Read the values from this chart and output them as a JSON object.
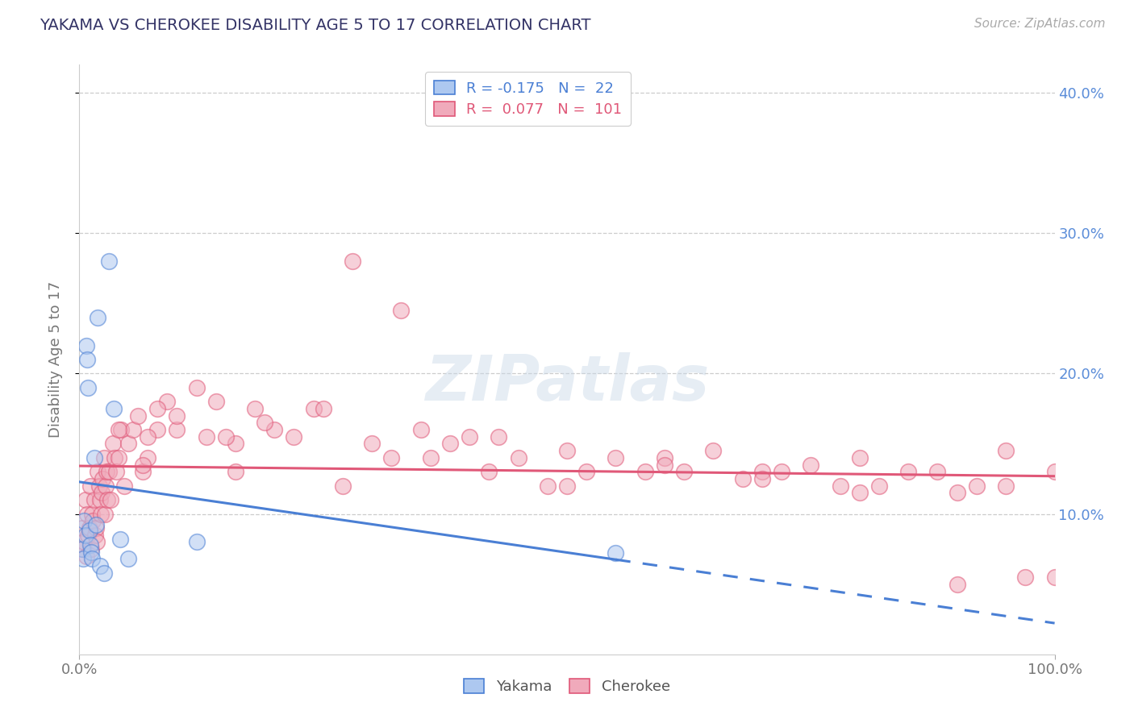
{
  "title": "YAKAMA VS CHEROKEE DISABILITY AGE 5 TO 17 CORRELATION CHART",
  "source": "Source: ZipAtlas.com",
  "ylabel": "Disability Age 5 to 17",
  "xlim": [
    0.0,
    1.0
  ],
  "ylim": [
    0.0,
    0.42
  ],
  "ytick_vals": [
    0.1,
    0.2,
    0.3,
    0.4
  ],
  "ytick_labels": [
    "10.0%",
    "20.0%",
    "30.0%",
    "40.0%"
  ],
  "xtick_vals": [
    0.0,
    1.0
  ],
  "xtick_labels": [
    "0.0%",
    "100.0%"
  ],
  "legend_R_yakama": "-0.175",
  "legend_N_yakama": "22",
  "legend_R_cherokee": "0.077",
  "legend_N_cherokee": "101",
  "yakama_color": "#adc8f0",
  "cherokee_color": "#f0aabb",
  "yakama_line_color": "#4a7fd4",
  "cherokee_line_color": "#e05878",
  "background_color": "#ffffff",
  "yakama_x": [
    0.003,
    0.004,
    0.005,
    0.006,
    0.007,
    0.008,
    0.009,
    0.01,
    0.011,
    0.012,
    0.013,
    0.015,
    0.017,
    0.019,
    0.021,
    0.025,
    0.03,
    0.035,
    0.042,
    0.05,
    0.12,
    0.55
  ],
  "yakama_y": [
    0.075,
    0.068,
    0.095,
    0.085,
    0.22,
    0.21,
    0.19,
    0.088,
    0.078,
    0.073,
    0.068,
    0.14,
    0.092,
    0.24,
    0.063,
    0.058,
    0.28,
    0.175,
    0.082,
    0.068,
    0.08,
    0.072
  ],
  "cherokee_x": [
    0.003,
    0.004,
    0.005,
    0.006,
    0.007,
    0.008,
    0.009,
    0.01,
    0.011,
    0.012,
    0.013,
    0.014,
    0.015,
    0.016,
    0.017,
    0.018,
    0.019,
    0.02,
    0.021,
    0.022,
    0.023,
    0.024,
    0.025,
    0.026,
    0.027,
    0.028,
    0.029,
    0.03,
    0.032,
    0.034,
    0.036,
    0.038,
    0.04,
    0.043,
    0.046,
    0.05,
    0.055,
    0.06,
    0.065,
    0.07,
    0.08,
    0.09,
    0.1,
    0.12,
    0.14,
    0.16,
    0.18,
    0.2,
    0.24,
    0.28,
    0.32,
    0.38,
    0.43,
    0.5,
    0.58,
    0.65,
    0.72,
    0.8,
    0.88,
    0.95,
    1.0,
    0.065,
    0.07,
    0.1,
    0.13,
    0.16,
    0.19,
    0.22,
    0.3,
    0.36,
    0.42,
    0.48,
    0.55,
    0.62,
    0.68,
    0.75,
    0.82,
    0.9,
    0.97,
    0.04,
    0.08,
    0.15,
    0.25,
    0.35,
    0.45,
    0.52,
    0.6,
    0.7,
    0.78,
    0.85,
    0.92,
    0.33,
    0.4,
    0.5,
    0.6,
    0.7,
    0.8,
    0.9,
    0.95,
    1.0,
    0.27
  ],
  "cherokee_y": [
    0.09,
    0.075,
    0.08,
    0.11,
    0.07,
    0.1,
    0.085,
    0.09,
    0.12,
    0.075,
    0.1,
    0.095,
    0.11,
    0.085,
    0.09,
    0.08,
    0.13,
    0.12,
    0.11,
    0.1,
    0.115,
    0.125,
    0.14,
    0.1,
    0.12,
    0.13,
    0.11,
    0.13,
    0.11,
    0.15,
    0.14,
    0.13,
    0.14,
    0.16,
    0.12,
    0.15,
    0.16,
    0.17,
    0.13,
    0.14,
    0.16,
    0.18,
    0.16,
    0.19,
    0.18,
    0.15,
    0.175,
    0.16,
    0.175,
    0.28,
    0.14,
    0.15,
    0.155,
    0.12,
    0.13,
    0.145,
    0.13,
    0.14,
    0.13,
    0.12,
    0.055,
    0.135,
    0.155,
    0.17,
    0.155,
    0.13,
    0.165,
    0.155,
    0.15,
    0.14,
    0.13,
    0.12,
    0.14,
    0.13,
    0.125,
    0.135,
    0.12,
    0.115,
    0.055,
    0.16,
    0.175,
    0.155,
    0.175,
    0.16,
    0.14,
    0.13,
    0.14,
    0.13,
    0.12,
    0.13,
    0.12,
    0.245,
    0.155,
    0.145,
    0.135,
    0.125,
    0.115,
    0.05,
    0.145,
    0.13,
    0.12
  ]
}
